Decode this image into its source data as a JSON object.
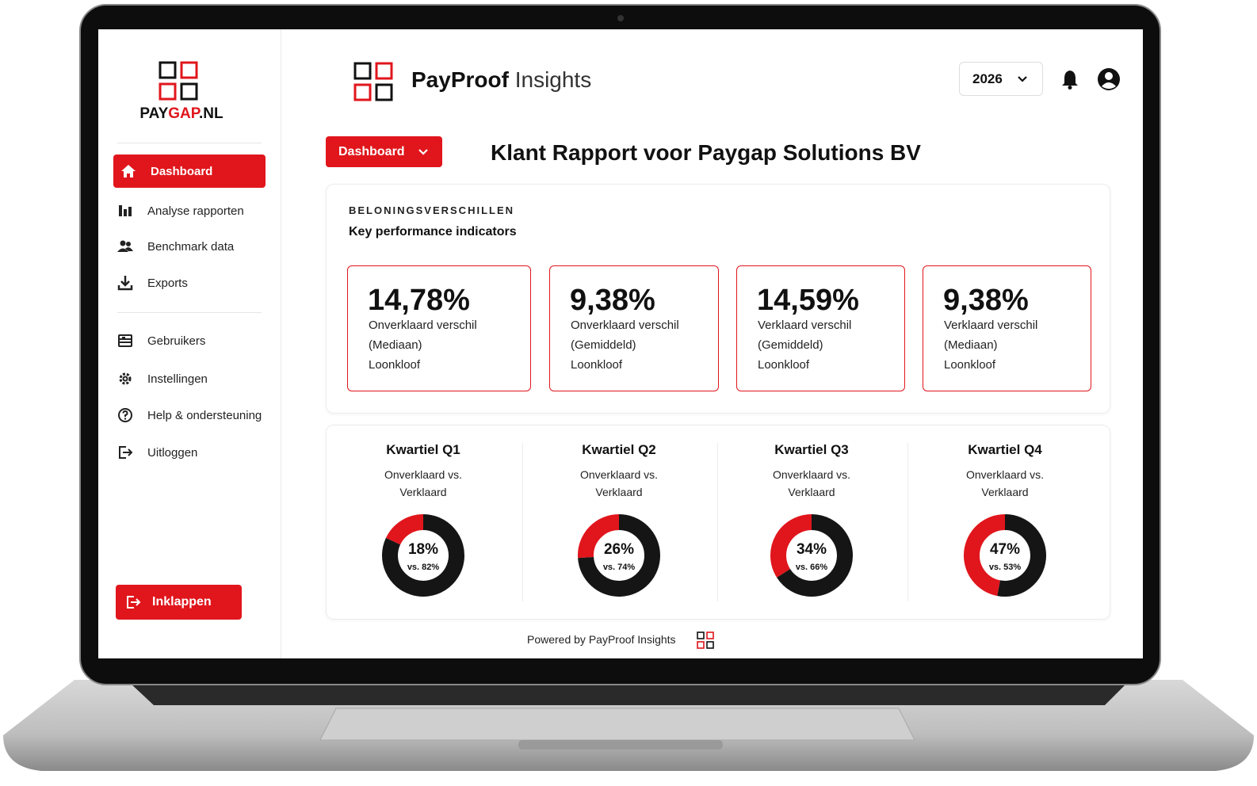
{
  "sidebar": {
    "logo": {
      "pay": "PAY",
      "gap": "GAP",
      "tld": ".NL"
    },
    "nav": [
      "Dashboard",
      "Analyse rapporten",
      "Benchmark data",
      "Exports",
      "Gebruikers",
      "Instellingen",
      "Help & ondersteuning",
      "Uitloggen"
    ],
    "collapse": "Inklappen"
  },
  "header": {
    "brand": "PayProof",
    "brand_suffix": "Insights",
    "year": "2026"
  },
  "view_selector": "Dashboard",
  "title": "Klant Rapport voor Paygap Solutions BV",
  "kpi_section": {
    "label": "BELONINGSVERSCHILLEN",
    "subtitle": "Key performance indicators",
    "cards": [
      {
        "value": "14,78%",
        "lines": [
          "Onverklaard verschil",
          "(Mediaan)",
          "Loonkloof"
        ]
      },
      {
        "value": "9,38%",
        "lines": [
          "Onverklaard verschil",
          "(Gemiddeld)",
          "Loonkloof"
        ]
      },
      {
        "value": "14,59%",
        "lines": [
          "Verklaard verschil",
          "(Gemiddeld)",
          "Loonkloof"
        ]
      },
      {
        "value": "9,38%",
        "lines": [
          "Verklaard verschil",
          "(Mediaan)",
          "Loonkloof"
        ]
      }
    ]
  },
  "quartiles": [
    {
      "title": "Kwartiel Q1",
      "subtitle": [
        "Onverklaard vs.",
        "Verklaard"
      ],
      "unexplained": 18,
      "unexplained_label": "18%",
      "explained": 82,
      "explained_label": "vs. 82%"
    },
    {
      "title": "Kwartiel Q2",
      "subtitle": [
        "Onverklaard vs.",
        "Verklaard"
      ],
      "unexplained": 26,
      "unexplained_label": "26%",
      "explained": 74,
      "explained_label": "vs. 74%"
    },
    {
      "title": "Kwartiel Q3",
      "subtitle": [
        "Onverklaard vs.",
        "Verklaard"
      ],
      "unexplained": 34,
      "unexplained_label": "34%",
      "explained": 66,
      "explained_label": "vs. 66%"
    },
    {
      "title": "Kwartiel Q4",
      "subtitle": [
        "Onverklaard vs.",
        "Verklaard"
      ],
      "unexplained": 47,
      "unexplained_label": "47%",
      "explained": 53,
      "explained_label": "vs. 53%"
    }
  ],
  "footer": "Powered by PayProof Insights"
}
